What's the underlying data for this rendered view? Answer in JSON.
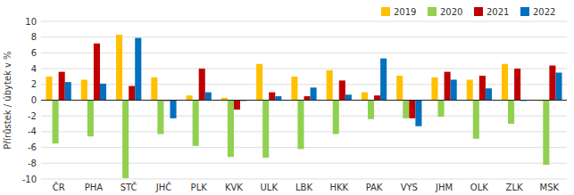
{
  "chart_data": {
    "type": "bar",
    "ylabel": "Přírůstek / úbytek v %",
    "categories": [
      "ČR",
      "PHA",
      "STČ",
      "JHČ",
      "PLK",
      "KVK",
      "ULK",
      "LBK",
      "HKK",
      "PAK",
      "VYS",
      "JHM",
      "OLK",
      "ZLK",
      "MSK"
    ],
    "series": [
      {
        "name": "2019",
        "color": "#FFC000",
        "values": [
          3.0,
          2.6,
          8.3,
          2.9,
          0.6,
          0.3,
          4.6,
          3.0,
          3.8,
          1.0,
          3.1,
          2.9,
          2.6,
          4.6,
          -0.1
        ]
      },
      {
        "name": "2020",
        "color": "#92D050",
        "values": [
          -5.5,
          -4.6,
          -9.9,
          -4.3,
          -5.8,
          -7.2,
          -7.3,
          -6.2,
          -4.3,
          -2.4,
          -2.3,
          -2.1,
          -4.9,
          -3.0,
          -8.2
        ]
      },
      {
        "name": "2021",
        "color": "#C00000",
        "values": [
          3.6,
          7.2,
          1.8,
          -0.1,
          4.0,
          -1.2,
          1.0,
          0.5,
          2.5,
          0.6,
          -2.3,
          3.6,
          3.1,
          4.0,
          4.4
        ]
      },
      {
        "name": "2022",
        "color": "#0070C0",
        "values": [
          2.3,
          2.1,
          7.9,
          -2.3,
          1.0,
          -0.1,
          0.5,
          1.6,
          0.7,
          5.3,
          -3.3,
          2.6,
          1.5,
          -0.1,
          3.5
        ]
      }
    ],
    "ylim": [
      -10,
      10
    ],
    "yticks": [
      -10,
      -8,
      -6,
      -4,
      -2,
      0,
      2,
      4,
      6,
      8,
      10
    ],
    "grid": true,
    "legend": "upper right"
  }
}
